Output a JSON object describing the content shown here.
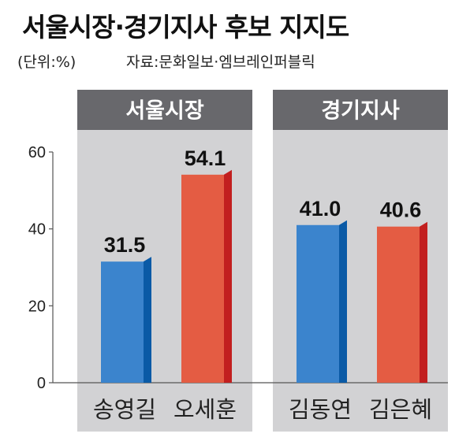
{
  "title": "서울시장·경기지사 후보 지지도",
  "unit": "(단위:%)",
  "source": "자료:문화일보·엠브레인퍼블릭",
  "colors": {
    "panel_bg": "#d2d2d4",
    "header_bg": "#68686c",
    "header_text": "#ffffff",
    "blue": "#3b84cd",
    "blue_side": "#0a5aa6",
    "red": "#e45c43",
    "red_side": "#c21f1f"
  },
  "chart_data": {
    "type": "bar",
    "ylim": [
      0,
      60
    ],
    "yticks": [
      "0",
      "20",
      "40",
      "60"
    ],
    "groups": [
      {
        "name": "서울시장",
        "bars": [
          {
            "label": "송영길",
            "value": 31.5,
            "value_label": "31.5",
            "color": "blue"
          },
          {
            "label": "오세훈",
            "value": 54.1,
            "value_label": "54.1",
            "color": "red"
          }
        ]
      },
      {
        "name": "경기지사",
        "bars": [
          {
            "label": "김동연",
            "value": 41.0,
            "value_label": "41.0",
            "color": "blue"
          },
          {
            "label": "김은혜",
            "value": 40.6,
            "value_label": "40.6",
            "color": "red"
          }
        ]
      }
    ]
  }
}
